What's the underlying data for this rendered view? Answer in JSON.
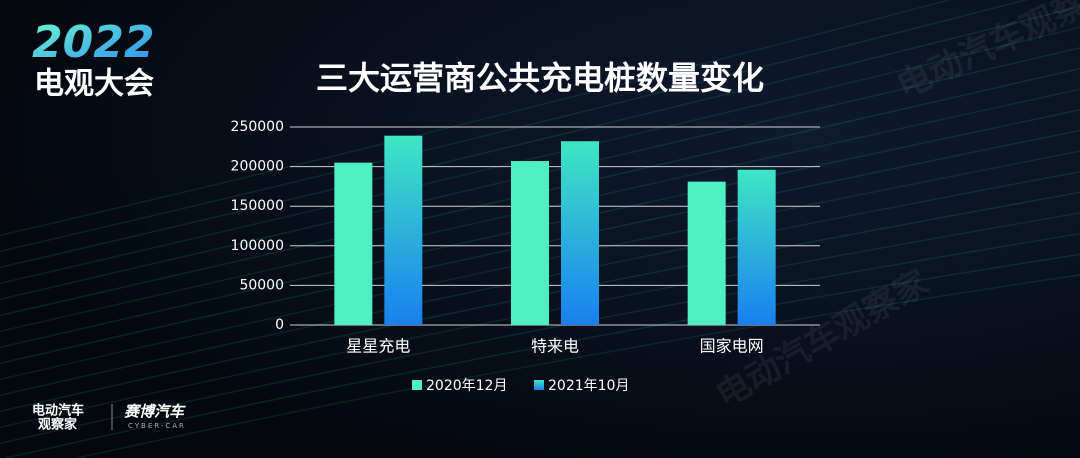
{
  "badge": {
    "year": "2022",
    "name": "电观大会"
  },
  "watermark": "电动汽车观察家",
  "footer": {
    "left": [
      "电动汽车",
      "观察家"
    ],
    "right": "赛博汽车",
    "right_sub": "CYBER-CAR"
  },
  "chart_data": {
    "type": "bar",
    "title": "三大运营商公共充电桩数量变化",
    "categories": [
      "星星充电",
      "特来电",
      "国家电网"
    ],
    "series": [
      {
        "name": "2020年12月",
        "color": "#4ef0c2",
        "values": [
          205000,
          207000,
          181000
        ]
      },
      {
        "name": "2021年10月",
        "color": "#1a7ff0",
        "values": [
          239000,
          232000,
          196000
        ]
      }
    ],
    "ylim": [
      0,
      250000
    ],
    "yticks": [
      0,
      50000,
      100000,
      150000,
      200000,
      250000
    ],
    "grid": true
  }
}
